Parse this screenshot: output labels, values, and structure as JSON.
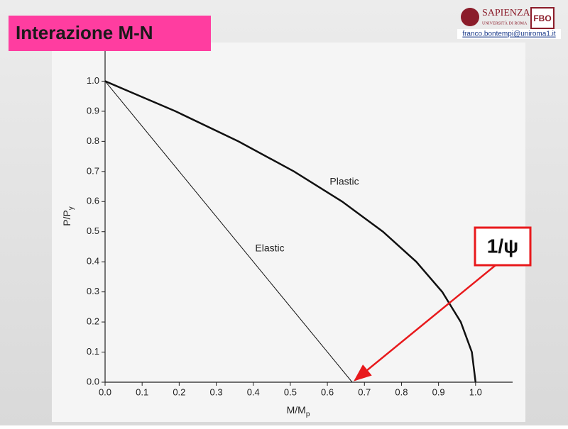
{
  "header": {
    "title": "Interazione M-N",
    "logo_name": "SAPIENZA",
    "logo_subtitle": "UNIVERSITÀ DI ROMA",
    "logo_mark": "FBO",
    "email": "franco.bontempi@uniroma1.it"
  },
  "chart_data": {
    "type": "line",
    "xlabel": [
      "M/M",
      "p"
    ],
    "ylabel": [
      "P/P",
      "y"
    ],
    "series": [
      {
        "name": "Plastic",
        "color": "#111111",
        "line_width": 2.5,
        "x": [
          0,
          0.19,
          0.36,
          0.51,
          0.64,
          0.75,
          0.84,
          0.91,
          0.96,
          0.99,
          1
        ],
        "values": [
          1,
          0.9,
          0.8,
          0.7,
          0.6,
          0.5,
          0.4,
          0.3,
          0.2,
          0.1,
          0
        ]
      },
      {
        "name": "Elastic",
        "color": "#111111",
        "line_width": 1,
        "x": [
          0,
          0.667
        ],
        "values": [
          1,
          0
        ]
      }
    ],
    "xlim": [
      0,
      1.1
    ],
    "ylim": [
      0,
      1.1
    ],
    "xticks": [
      {
        "value": 0,
        "label": "0.0"
      },
      0.1,
      0.2,
      0.3,
      0.4,
      0.5,
      0.6,
      0.7,
      0.8,
      0.9,
      {
        "value": 1,
        "label": "1.0"
      }
    ],
    "yticks": [
      {
        "value": 0,
        "label": "0.0"
      },
      0.1,
      0.2,
      0.3,
      0.4,
      0.5,
      0.6,
      0.7,
      0.8,
      0.9,
      {
        "value": 1,
        "label": "1.0"
      }
    ],
    "annotation": {
      "text": "1/ψ",
      "color": "#e8191c"
    }
  }
}
